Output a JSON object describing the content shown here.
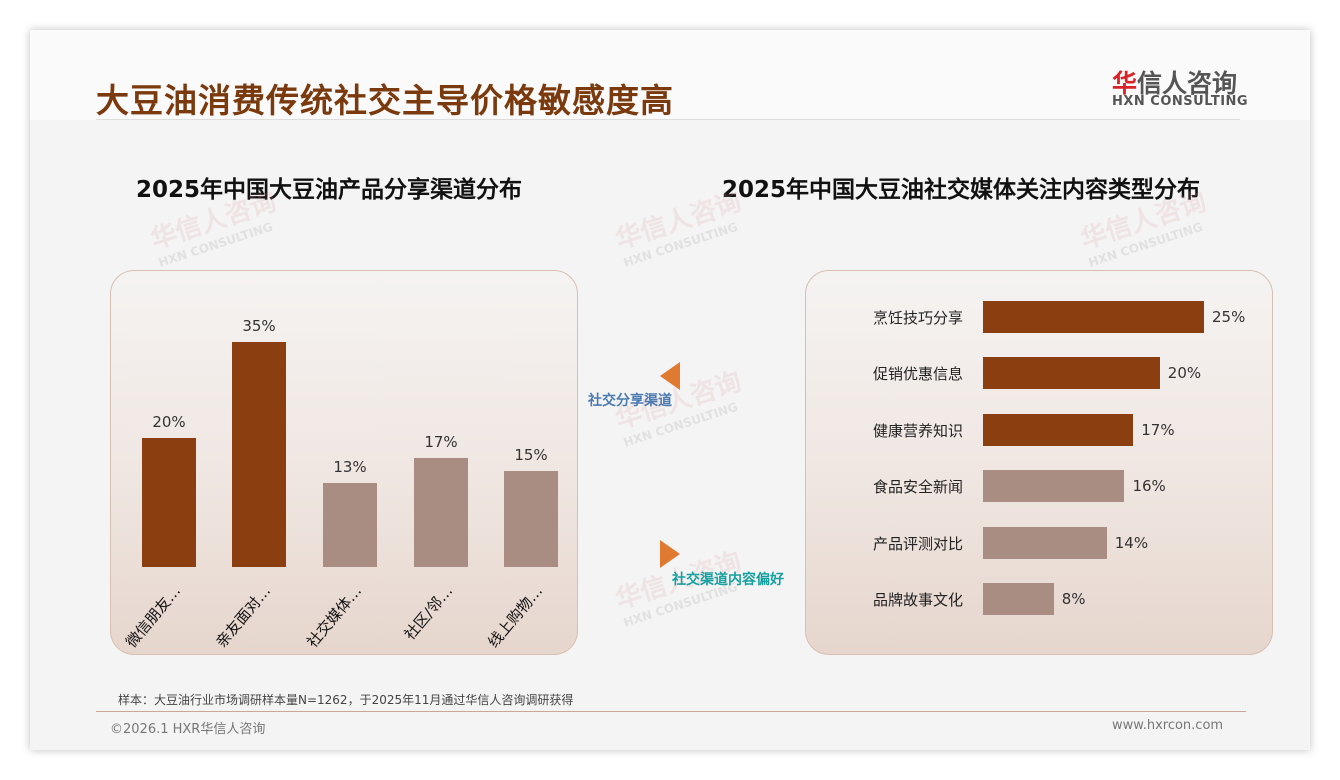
{
  "header": {
    "title": "大豆油消费传统社交主导价格敏感度高",
    "logo_cn_red": "华",
    "logo_cn": "信人咨询",
    "logo_en": "HXN CONSULTING"
  },
  "watermark": {
    "cn": "华信人咨询",
    "en": "HXN CONSULTING"
  },
  "colors": {
    "dark": "#8B3E0F",
    "light": "#A98C82",
    "title": "#7b3a0e"
  },
  "chart_data": [
    {
      "type": "bar",
      "title": "2025年中国大豆油产品分享渠道分布",
      "categories": [
        "微信朋友…",
        "亲友面对…",
        "社交媒体…",
        "社区/邻…",
        "线上购物…"
      ],
      "values": [
        20,
        35,
        13,
        17,
        15
      ],
      "labels": [
        "20%",
        "35%",
        "13%",
        "17%",
        "15%"
      ],
      "highlight": [
        true,
        true,
        false,
        false,
        false
      ],
      "ylim": [
        0,
        35
      ]
    },
    {
      "type": "bar",
      "orientation": "horizontal",
      "title": "2025年中国大豆油社交媒体关注内容类型分布",
      "categories": [
        "烹饪技巧分享",
        "促销优惠信息",
        "健康营养知识",
        "食品安全新闻",
        "产品评测对比",
        "品牌故事文化"
      ],
      "values": [
        25,
        20,
        17,
        16,
        14,
        8
      ],
      "labels": [
        "25%",
        "20%",
        "17%",
        "16%",
        "14%",
        "8%"
      ],
      "highlight": [
        true,
        true,
        true,
        false,
        false,
        false
      ],
      "xlim": [
        0,
        25
      ]
    }
  ],
  "annotations": {
    "left": "社交分享渠道",
    "right": "社交渠道内容偏好"
  },
  "footer": {
    "note": "样本：大豆油行业市场调研样本量N=1262，于2025年11月通过华信人咨询调研获得",
    "copyright": "©2026.1 HXR华信人咨询",
    "website": "www.hxrcon.com"
  }
}
